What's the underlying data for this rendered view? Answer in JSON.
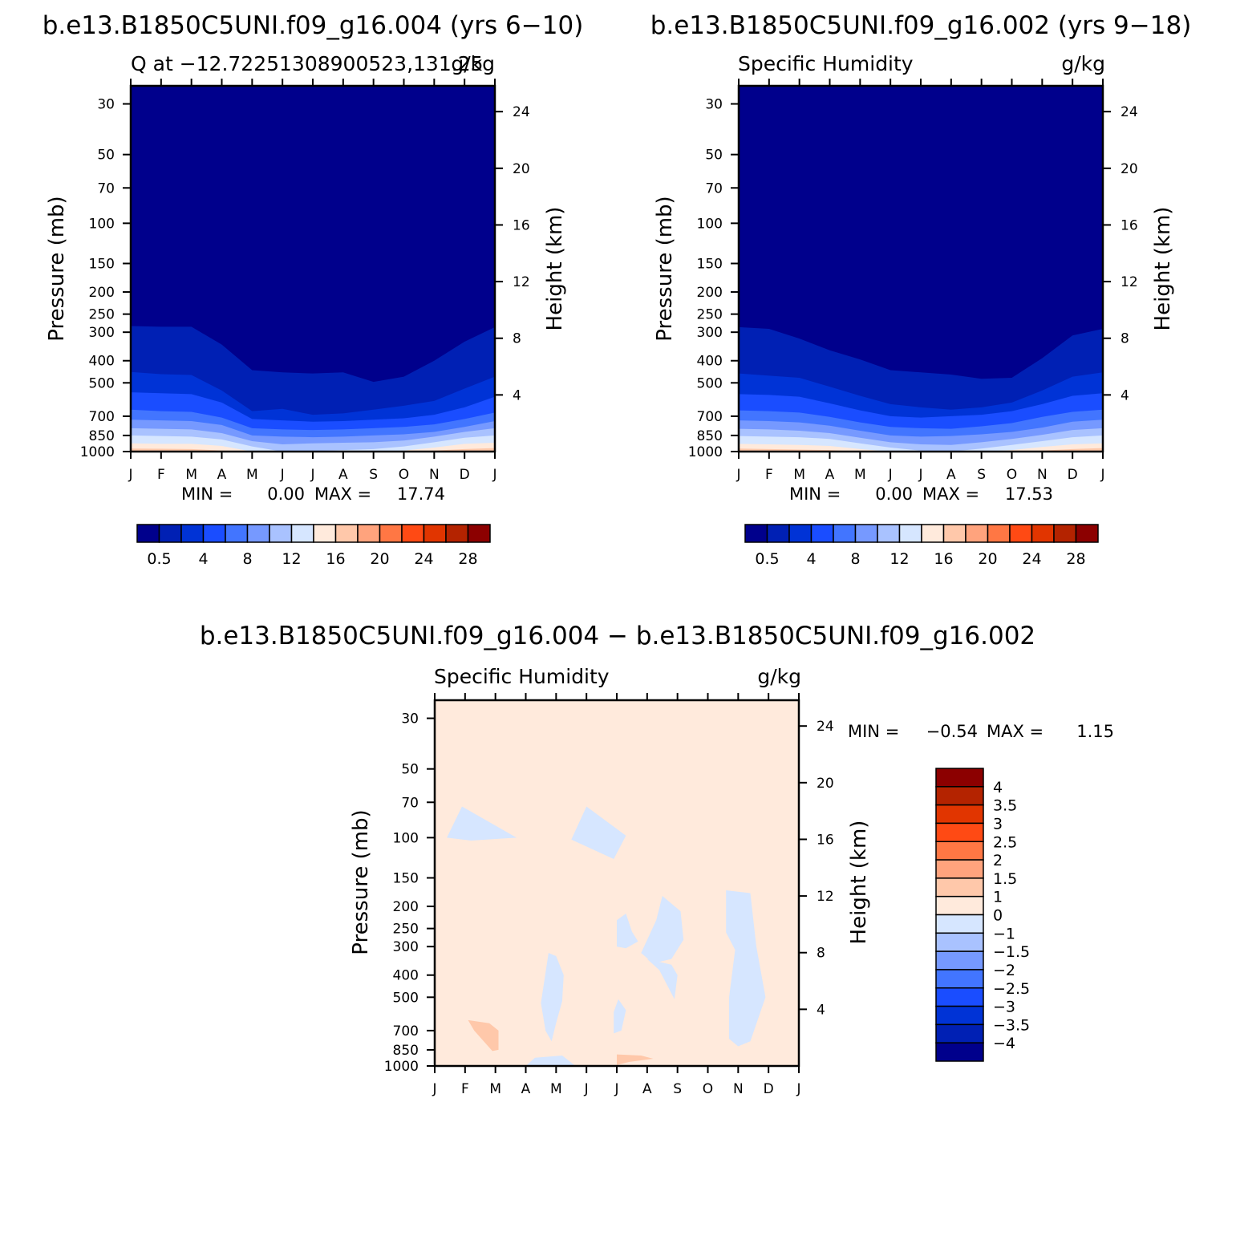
{
  "figure": {
    "top_left_title": "b.e13.B1850C5UNI.f09_g16.004 (yrs 6−10)",
    "top_right_title": "b.e13.B1850C5UNI.f09_g16.002 (yrs 9−18)",
    "bottom_title": "b.e13.B1850C5UNI.f09_g16.004 − b.e13.B1850C5UNI.f09_g16.002"
  },
  "colors": {
    "levels_palette": [
      "#00008c",
      "#0020b4",
      "#0033d6",
      "#1a4dff",
      "#4275ff",
      "#7699ff",
      "#a9c2ff",
      "#d6e6ff",
      "#ffeadc",
      "#ffc8aa",
      "#ffa37d",
      "#ff7744",
      "#ff4a14",
      "#e13500",
      "#b42300",
      "#8c0000"
    ],
    "diff_palette": [
      "#00008c",
      "#0020b4",
      "#0033d6",
      "#1a4dff",
      "#4275ff",
      "#7699ff",
      "#a9c2ff",
      "#d6e6ff",
      "#ffeadc",
      "#ffc8aa",
      "#ffa37d",
      "#ff7744",
      "#ff4a14",
      "#e13500",
      "#b42300",
      "#8c0000"
    ]
  },
  "chart_data": [
    {
      "type": "heatmap",
      "title": "Q at −12.72251308900523,131.25",
      "units": "g/kg",
      "xlabel": "",
      "ylabel": "Pressure (mb)",
      "ylabel_right": "Height (km)",
      "x_ticks": [
        "J",
        "F",
        "M",
        "A",
        "M",
        "J",
        "J",
        "A",
        "S",
        "O",
        "N",
        "D",
        "J"
      ],
      "y_ticks": [
        30,
        50,
        70,
        100,
        150,
        200,
        250,
        300,
        400,
        500,
        700,
        850,
        1000
      ],
      "y_log": true,
      "ylim": [
        1000,
        25
      ],
      "height_ticks": [
        4,
        8,
        12,
        16,
        20,
        24
      ],
      "min_label": "MIN =",
      "min_value": "0.00",
      "max_label": "MAX =",
      "max_value": "17.74",
      "colorbar_labels": [
        "0.5",
        "4",
        "8",
        "12",
        "16",
        "20",
        "24",
        "28"
      ],
      "contour_months": [
        1,
        2,
        3,
        4,
        5,
        6,
        7,
        8,
        9,
        10,
        11,
        12,
        13
      ],
      "contour_levels": [
        0.5,
        2,
        4,
        6,
        8,
        10,
        12,
        14,
        16
      ],
      "contour_pressures": [
        [
          282,
          284,
          284,
          340,
          440,
          450,
          455,
          450,
          495,
          470,
          400,
          330,
          285
        ],
        [
          448,
          458,
          462,
          540,
          665,
          650,
          690,
          680,
          655,
          630,
          600,
          530,
          470
        ],
        [
          550,
          555,
          560,
          610,
          720,
          730,
          740,
          735,
          725,
          715,
          690,
          640,
          575
        ],
        [
          655,
          665,
          670,
          710,
          790,
          800,
          805,
          800,
          790,
          780,
          760,
          720,
          675
        ],
        [
          725,
          730,
          735,
          765,
          850,
          860,
          865,
          860,
          850,
          840,
          820,
          780,
          735
        ],
        [
          790,
          795,
          800,
          830,
          900,
          930,
          920,
          915,
          910,
          895,
          860,
          820,
          790
        ],
        [
          850,
          855,
          860,
          885,
          950,
          1000,
          995,
          985,
          975,
          950,
          910,
          870,
          850
        ],
        [
          920,
          925,
          925,
          945,
          1000,
          1000,
          1000,
          1000,
          1000,
          990,
          960,
          925,
          915
        ],
        [
          970,
          972,
          975,
          990,
          1000,
          1000,
          1000,
          1000,
          1000,
          1000,
          990,
          975,
          965
        ]
      ]
    },
    {
      "type": "heatmap",
      "title": "Specific Humidity",
      "units": "g/kg",
      "xlabel": "",
      "ylabel": "Pressure (mb)",
      "ylabel_right": "Height (km)",
      "x_ticks": [
        "J",
        "F",
        "M",
        "A",
        "M",
        "J",
        "J",
        "A",
        "S",
        "O",
        "N",
        "D",
        "J"
      ],
      "y_ticks": [
        30,
        50,
        70,
        100,
        150,
        200,
        250,
        300,
        400,
        500,
        700,
        850,
        1000
      ],
      "y_log": true,
      "ylim": [
        1000,
        25
      ],
      "height_ticks": [
        4,
        8,
        12,
        16,
        20,
        24
      ],
      "min_label": "MIN =",
      "min_value": "0.00",
      "max_label": "MAX =",
      "max_value": "17.53",
      "colorbar_labels": [
        "0.5",
        "4",
        "8",
        "12",
        "16",
        "20",
        "24",
        "28"
      ],
      "contour_months": [
        1,
        2,
        3,
        4,
        5,
        6,
        7,
        8,
        9,
        10,
        11,
        12,
        13
      ],
      "contour_levels": [
        0.5,
        2,
        4,
        6,
        8,
        10,
        12,
        14,
        16
      ],
      "contour_pressures": [
        [
          285,
          290,
          320,
          360,
          395,
          440,
          450,
          460,
          480,
          475,
          390,
          310,
          290
        ],
        [
          455,
          465,
          475,
          520,
          570,
          620,
          640,
          655,
          640,
          610,
          540,
          470,
          450
        ],
        [
          560,
          565,
          575,
          615,
          660,
          700,
          710,
          700,
          690,
          665,
          620,
          570,
          555
        ],
        [
          660,
          665,
          675,
          705,
          745,
          780,
          790,
          795,
          775,
          750,
          705,
          670,
          655
        ],
        [
          730,
          735,
          745,
          770,
          810,
          850,
          860,
          855,
          840,
          820,
          785,
          740,
          725
        ],
        [
          795,
          800,
          810,
          830,
          870,
          910,
          930,
          935,
          910,
          880,
          845,
          805,
          790
        ],
        [
          855,
          860,
          865,
          880,
          920,
          960,
          990,
          1000,
          970,
          935,
          900,
          865,
          850
        ],
        [
          925,
          930,
          935,
          945,
          975,
          1000,
          1000,
          1000,
          1000,
          985,
          955,
          930,
          920
        ],
        [
          970,
          975,
          980,
          985,
          1000,
          1000,
          1000,
          1000,
          1000,
          1000,
          990,
          975,
          965
        ]
      ]
    },
    {
      "type": "heatmap",
      "title": "Specific Humidity",
      "units": "g/kg",
      "xlabel": "",
      "ylabel": "Pressure (mb)",
      "ylabel_right": "Height (km)",
      "x_ticks": [
        "J",
        "F",
        "M",
        "A",
        "M",
        "J",
        "J",
        "A",
        "S",
        "O",
        "N",
        "D",
        "J"
      ],
      "y_ticks": [
        30,
        50,
        70,
        100,
        150,
        200,
        250,
        300,
        400,
        500,
        700,
        850,
        1000
      ],
      "y_log": true,
      "ylim": [
        1000,
        25
      ],
      "height_ticks": [
        4,
        8,
        12,
        16,
        20,
        24
      ],
      "min_label": "MIN =",
      "min_value": "−0.54",
      "max_label": "MAX =",
      "max_value": "1.15",
      "background_range": [
        0,
        1
      ],
      "colorbar_levels": [
        "4",
        "3.5",
        "3",
        "2.5",
        "2",
        "1.5",
        "1",
        "0",
        "−1",
        "−1.5",
        "−2",
        "−2.5",
        "−3",
        "−3.5",
        "−4"
      ],
      "regions": [
        {
          "range": [
            -1,
            0
          ],
          "points": [
            [
              1.4,
              100
            ],
            [
              1.9,
              73
            ],
            [
              3.7,
              100
            ],
            [
              2.2,
              103
            ]
          ]
        },
        {
          "range": [
            -1,
            0
          ],
          "points": [
            [
              5.5,
              102
            ],
            [
              6.0,
              73
            ],
            [
              7.3,
              98
            ],
            [
              6.9,
              124
            ]
          ]
        },
        {
          "range": [
            -1,
            0
          ],
          "points": [
            [
              7.0,
              230
            ],
            [
              7.3,
              215
            ],
            [
              7.5,
              258
            ],
            [
              7.7,
              285
            ],
            [
              7.3,
              305
            ],
            [
              7.0,
              300
            ]
          ]
        },
        {
          "range": [
            -1,
            0
          ],
          "points": [
            [
              7.8,
              320
            ],
            [
              8.3,
              230
            ],
            [
              8.5,
              180
            ],
            [
              9.1,
              210
            ],
            [
              9.2,
              280
            ],
            [
              8.8,
              340
            ],
            [
              8.2,
              355
            ]
          ]
        },
        {
          "range": [
            -1,
            0
          ],
          "points": [
            [
              8.0,
              340
            ],
            [
              8.8,
              360
            ],
            [
              9.0,
              400
            ],
            [
              8.9,
              510
            ],
            [
              8.4,
              380
            ]
          ]
        },
        {
          "range": [
            -1,
            0
          ],
          "points": [
            [
              10.6,
              170
            ],
            [
              11.4,
              175
            ],
            [
              11.6,
              300
            ],
            [
              11.9,
              500
            ],
            [
              11.4,
              780
            ],
            [
              11.0,
              820
            ],
            [
              10.7,
              760
            ],
            [
              10.7,
              500
            ],
            [
              10.9,
              310
            ],
            [
              10.6,
              260
            ]
          ]
        },
        {
          "range": [
            -1,
            0
          ],
          "points": [
            [
              4.75,
              320
            ],
            [
              5.0,
              330
            ],
            [
              5.25,
              400
            ],
            [
              5.2,
              520
            ],
            [
              5.0,
              650
            ],
            [
              4.85,
              780
            ],
            [
              4.65,
              700
            ],
            [
              4.5,
              530
            ]
          ]
        },
        {
          "range": [
            -1,
            0
          ],
          "points": [
            [
              7.05,
              510
            ],
            [
              7.3,
              570
            ],
            [
              7.15,
              700
            ],
            [
              6.9,
              720
            ],
            [
              6.9,
              580
            ]
          ]
        },
        {
          "range": [
            -1,
            0
          ],
          "points": [
            [
              4.0,
              1000
            ],
            [
              4.3,
              920
            ],
            [
              5.2,
              900
            ],
            [
              5.6,
              990
            ],
            [
              5.6,
              1000
            ]
          ]
        },
        {
          "range": [
            1,
            1.5
          ],
          "points": [
            [
              2.1,
              630
            ],
            [
              2.8,
              650
            ],
            [
              3.1,
              700
            ],
            [
              3.1,
              850
            ],
            [
              2.9,
              860
            ],
            [
              2.3,
              700
            ]
          ]
        },
        {
          "range": [
            1,
            1.5
          ],
          "points": [
            [
              7.0,
              890
            ],
            [
              7.8,
              900
            ],
            [
              8.2,
              930
            ],
            [
              7.4,
              960
            ],
            [
              7.0,
              990
            ]
          ]
        }
      ]
    }
  ]
}
